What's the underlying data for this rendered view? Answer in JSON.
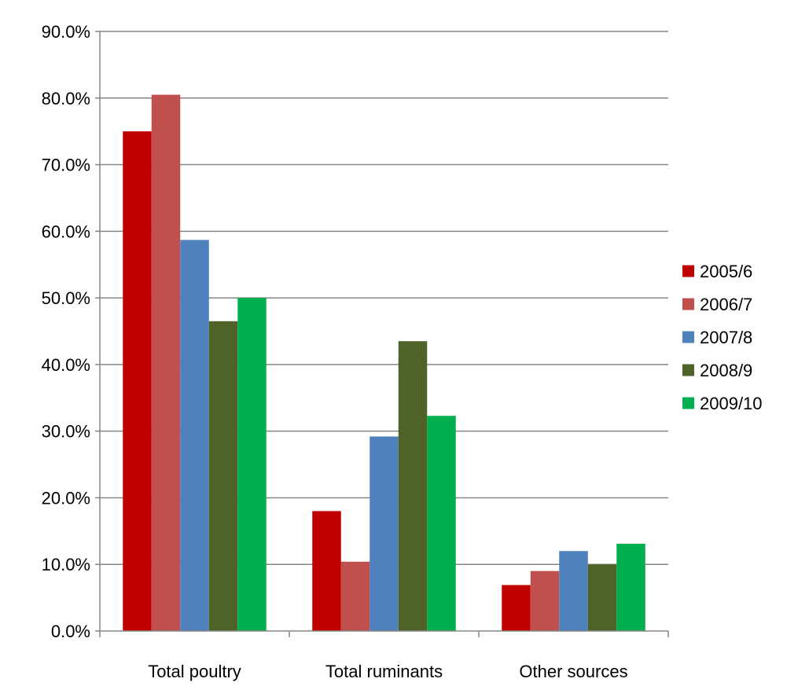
{
  "chart_data": {
    "type": "bar",
    "title": "",
    "xlabel": "",
    "ylabel": "",
    "categories": [
      "Total poultry",
      "Total ruminants",
      "Other sources"
    ],
    "series": [
      {
        "name": "2005/6",
        "color": "#C00000",
        "values": [
          75.0,
          18.0,
          6.9
        ]
      },
      {
        "name": "2006/7",
        "color": "#C0504D",
        "values": [
          80.5,
          10.4,
          9.0
        ]
      },
      {
        "name": "2007/8",
        "color": "#4F81BD",
        "values": [
          58.7,
          29.2,
          12.0
        ]
      },
      {
        "name": "2008/9",
        "color": "#4F6228",
        "values": [
          46.5,
          43.5,
          10.0
        ]
      },
      {
        "name": "2009/10",
        "color": "#00B050",
        "values": [
          50.0,
          32.3,
          13.1
        ]
      }
    ],
    "ylim": [
      0,
      90
    ],
    "yticks": [
      0,
      10,
      20,
      30,
      40,
      50,
      60,
      70,
      80,
      90
    ],
    "ytick_labels": [
      "0.0%",
      "10.0%",
      "20.0%",
      "30.0%",
      "40.0%",
      "50.0%",
      "60.0%",
      "70.0%",
      "80.0%",
      "90.0%"
    ],
    "grid": true,
    "legend_position": "right",
    "gridline_color": "#868686",
    "axis_color": "#868686"
  }
}
